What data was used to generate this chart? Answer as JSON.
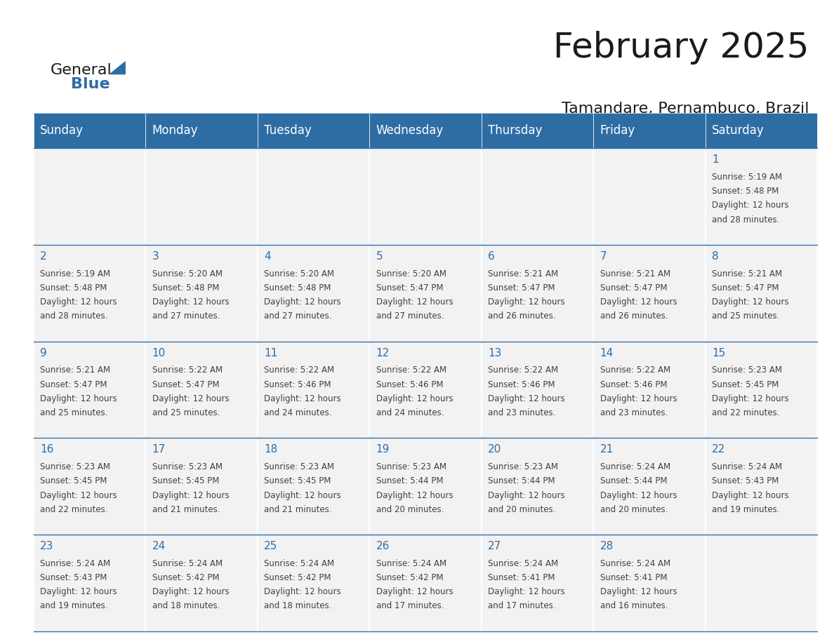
{
  "title": "February 2025",
  "subtitle": "Tamandare, Pernambuco, Brazil",
  "header_color": "#2E6DA4",
  "header_text_color": "#FFFFFF",
  "cell_bg_color": "#F2F2F2",
  "grid_line_color": "#2E6DA4",
  "day_number_color": "#2E6DA4",
  "cell_text_color": "#404040",
  "weekdays": [
    "Sunday",
    "Monday",
    "Tuesday",
    "Wednesday",
    "Thursday",
    "Friday",
    "Saturday"
  ],
  "logo_text_general": "General",
  "logo_text_blue": "Blue",
  "logo_triangle_color": "#2E6DA4",
  "days": [
    {
      "day": 1,
      "col": 6,
      "row": 0,
      "sunrise": "5:19 AM",
      "sunset": "5:48 PM",
      "daylight": "12 hours and 28 minutes."
    },
    {
      "day": 2,
      "col": 0,
      "row": 1,
      "sunrise": "5:19 AM",
      "sunset": "5:48 PM",
      "daylight": "12 hours and 28 minutes."
    },
    {
      "day": 3,
      "col": 1,
      "row": 1,
      "sunrise": "5:20 AM",
      "sunset": "5:48 PM",
      "daylight": "12 hours and 27 minutes."
    },
    {
      "day": 4,
      "col": 2,
      "row": 1,
      "sunrise": "5:20 AM",
      "sunset": "5:48 PM",
      "daylight": "12 hours and 27 minutes."
    },
    {
      "day": 5,
      "col": 3,
      "row": 1,
      "sunrise": "5:20 AM",
      "sunset": "5:47 PM",
      "daylight": "12 hours and 27 minutes."
    },
    {
      "day": 6,
      "col": 4,
      "row": 1,
      "sunrise": "5:21 AM",
      "sunset": "5:47 PM",
      "daylight": "12 hours and 26 minutes."
    },
    {
      "day": 7,
      "col": 5,
      "row": 1,
      "sunrise": "5:21 AM",
      "sunset": "5:47 PM",
      "daylight": "12 hours and 26 minutes."
    },
    {
      "day": 8,
      "col": 6,
      "row": 1,
      "sunrise": "5:21 AM",
      "sunset": "5:47 PM",
      "daylight": "12 hours and 25 minutes."
    },
    {
      "day": 9,
      "col": 0,
      "row": 2,
      "sunrise": "5:21 AM",
      "sunset": "5:47 PM",
      "daylight": "12 hours and 25 minutes."
    },
    {
      "day": 10,
      "col": 1,
      "row": 2,
      "sunrise": "5:22 AM",
      "sunset": "5:47 PM",
      "daylight": "12 hours and 25 minutes."
    },
    {
      "day": 11,
      "col": 2,
      "row": 2,
      "sunrise": "5:22 AM",
      "sunset": "5:46 PM",
      "daylight": "12 hours and 24 minutes."
    },
    {
      "day": 12,
      "col": 3,
      "row": 2,
      "sunrise": "5:22 AM",
      "sunset": "5:46 PM",
      "daylight": "12 hours and 24 minutes."
    },
    {
      "day": 13,
      "col": 4,
      "row": 2,
      "sunrise": "5:22 AM",
      "sunset": "5:46 PM",
      "daylight": "12 hours and 23 minutes."
    },
    {
      "day": 14,
      "col": 5,
      "row": 2,
      "sunrise": "5:22 AM",
      "sunset": "5:46 PM",
      "daylight": "12 hours and 23 minutes."
    },
    {
      "day": 15,
      "col": 6,
      "row": 2,
      "sunrise": "5:23 AM",
      "sunset": "5:45 PM",
      "daylight": "12 hours and 22 minutes."
    },
    {
      "day": 16,
      "col": 0,
      "row": 3,
      "sunrise": "5:23 AM",
      "sunset": "5:45 PM",
      "daylight": "12 hours and 22 minutes."
    },
    {
      "day": 17,
      "col": 1,
      "row": 3,
      "sunrise": "5:23 AM",
      "sunset": "5:45 PM",
      "daylight": "12 hours and 21 minutes."
    },
    {
      "day": 18,
      "col": 2,
      "row": 3,
      "sunrise": "5:23 AM",
      "sunset": "5:45 PM",
      "daylight": "12 hours and 21 minutes."
    },
    {
      "day": 19,
      "col": 3,
      "row": 3,
      "sunrise": "5:23 AM",
      "sunset": "5:44 PM",
      "daylight": "12 hours and 20 minutes."
    },
    {
      "day": 20,
      "col": 4,
      "row": 3,
      "sunrise": "5:23 AM",
      "sunset": "5:44 PM",
      "daylight": "12 hours and 20 minutes."
    },
    {
      "day": 21,
      "col": 5,
      "row": 3,
      "sunrise": "5:24 AM",
      "sunset": "5:44 PM",
      "daylight": "12 hours and 20 minutes."
    },
    {
      "day": 22,
      "col": 6,
      "row": 3,
      "sunrise": "5:24 AM",
      "sunset": "5:43 PM",
      "daylight": "12 hours and 19 minutes."
    },
    {
      "day": 23,
      "col": 0,
      "row": 4,
      "sunrise": "5:24 AM",
      "sunset": "5:43 PM",
      "daylight": "12 hours and 19 minutes."
    },
    {
      "day": 24,
      "col": 1,
      "row": 4,
      "sunrise": "5:24 AM",
      "sunset": "5:42 PM",
      "daylight": "12 hours and 18 minutes."
    },
    {
      "day": 25,
      "col": 2,
      "row": 4,
      "sunrise": "5:24 AM",
      "sunset": "5:42 PM",
      "daylight": "12 hours and 18 minutes."
    },
    {
      "day": 26,
      "col": 3,
      "row": 4,
      "sunrise": "5:24 AM",
      "sunset": "5:42 PM",
      "daylight": "12 hours and 17 minutes."
    },
    {
      "day": 27,
      "col": 4,
      "row": 4,
      "sunrise": "5:24 AM",
      "sunset": "5:41 PM",
      "daylight": "12 hours and 17 minutes."
    },
    {
      "day": 28,
      "col": 5,
      "row": 4,
      "sunrise": "5:24 AM",
      "sunset": "5:41 PM",
      "daylight": "12 hours and 16 minutes."
    }
  ]
}
